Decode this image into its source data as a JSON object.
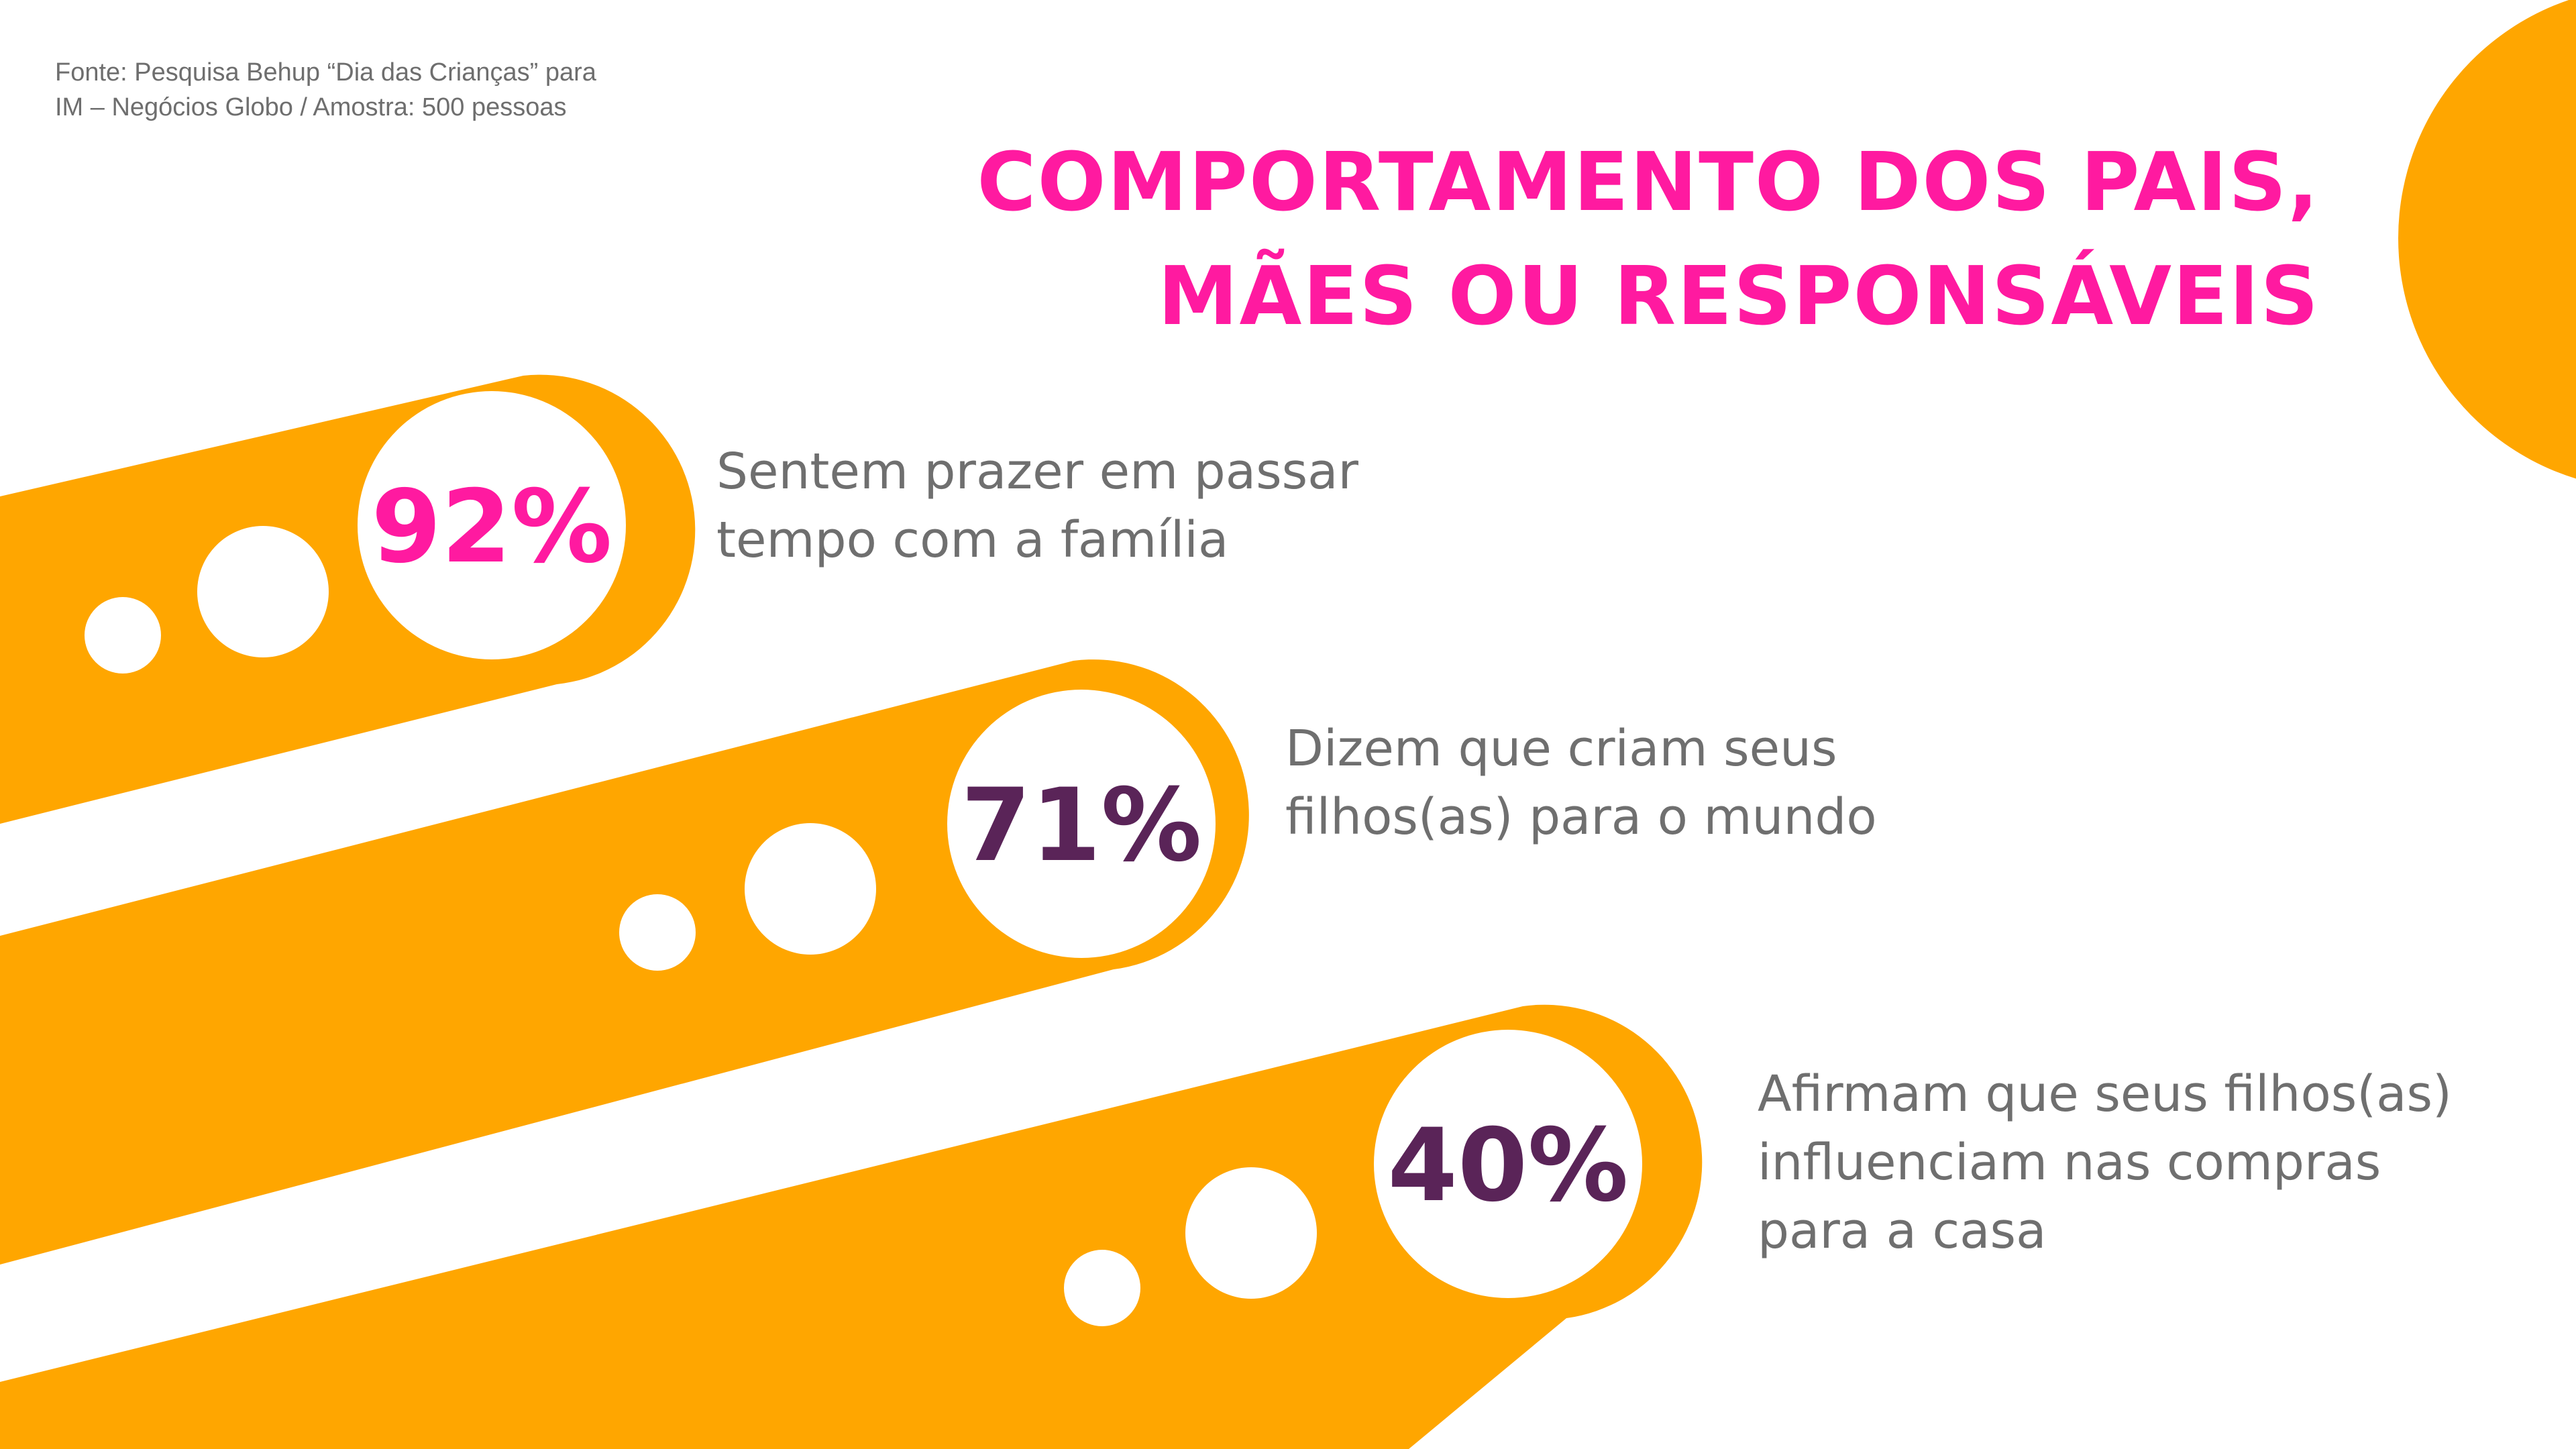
{
  "source": {
    "line1": "Fonte: Pesquisa Behup “Dia das Crianças” para",
    "line2": "IM – Negócios Globo / Amostra: 500 pessoas"
  },
  "title": {
    "line1": "COMPORTAMENTO DOS PAIS,",
    "line2": "MÃES OU RESPONSÁVEIS"
  },
  "stats": [
    {
      "value": "92%",
      "lines": [
        "Sentem prazer em passar",
        "tempo com a família"
      ],
      "color": "#ff1aa0"
    },
    {
      "value": "71%",
      "lines": [
        "Dizem que criam seus",
        "filhos(as) para o mundo"
      ],
      "color": "#5a2458"
    },
    {
      "value": "40%",
      "lines": [
        "Afirmam que seus filhos(as)",
        "influenciam nas compras",
        "para a casa"
      ],
      "color": "#5a2458"
    }
  ],
  "colors": {
    "accent_orange": "#ffa600",
    "title_pink": "#ff1aa0",
    "value_purple": "#5a2458",
    "text_gray": "#6f6f6f"
  }
}
